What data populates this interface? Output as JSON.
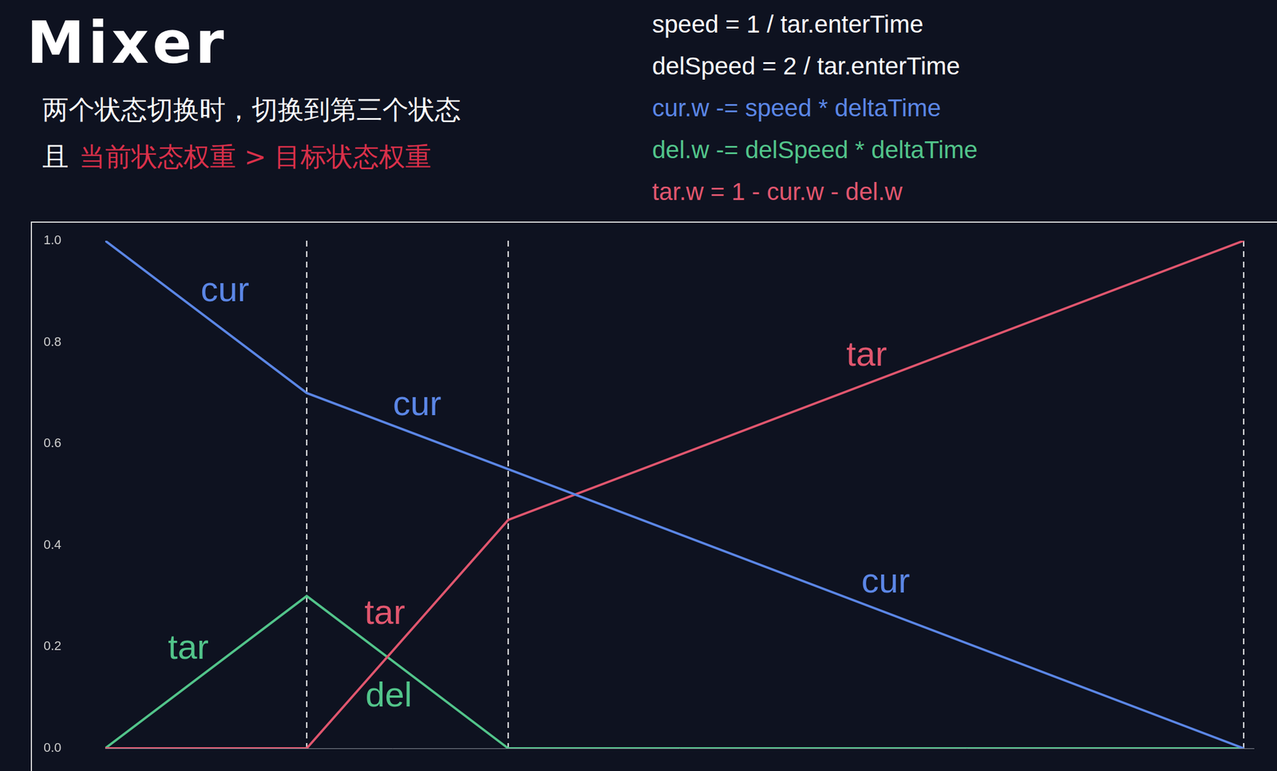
{
  "header": {
    "title": "Mixer",
    "lines": [
      [
        {
          "text": "两个状态切换时，切换到第三个状态",
          "color": "#ffffff"
        }
      ],
      [
        {
          "text": "且",
          "color": "#ffffff"
        },
        {
          "text": "当前状态权重 > 目标状态权重",
          "color": "#d9304a"
        }
      ]
    ]
  },
  "formulas": [
    {
      "text": "speed = 1 / tar.enterTime",
      "color": "#ffffff"
    },
    {
      "text": "delSpeed = 2 / tar.enterTime",
      "color": "#ffffff"
    },
    {
      "text": "cur.w -= speed * deltaTime",
      "color": "#5b86e5"
    },
    {
      "text": "del.w -= delSpeed * deltaTime",
      "color": "#52c48a"
    },
    {
      "text": "tar.w = 1 - cur.w - del.w",
      "color": "#e0566e"
    }
  ],
  "chart_data": {
    "type": "line",
    "x": [
      0,
      1,
      2,
      5.65
    ],
    "xlim": [
      0,
      5.7
    ],
    "ylim": [
      0,
      1
    ],
    "yticks": [
      {
        "value": 0,
        "label": "0.0"
      },
      {
        "value": 0.2,
        "label": "0.2"
      },
      {
        "value": 0.4,
        "label": "0.4"
      },
      {
        "value": 0.6,
        "label": "0.6"
      },
      {
        "value": 0.8,
        "label": "0.8"
      },
      {
        "value": 1,
        "label": "1.0"
      }
    ],
    "tick_labels": "y",
    "grid": false,
    "vlines": [
      1,
      2,
      5.65
    ],
    "series": [
      {
        "color": "#5b86e5",
        "values": [
          1,
          0.7,
          0.55,
          0
        ],
        "segment_labels": [
          "cur",
          "cur",
          "cur"
        ]
      },
      {
        "color": "#e0566e",
        "values": [
          0,
          0,
          0.45,
          1
        ],
        "segment_labels": [
          null,
          "tar",
          "tar"
        ]
      },
      {
        "color": "#52c48a",
        "values": [
          0,
          0.3,
          0,
          0
        ],
        "segment_labels": [
          "tar",
          "del",
          null
        ]
      }
    ]
  }
}
